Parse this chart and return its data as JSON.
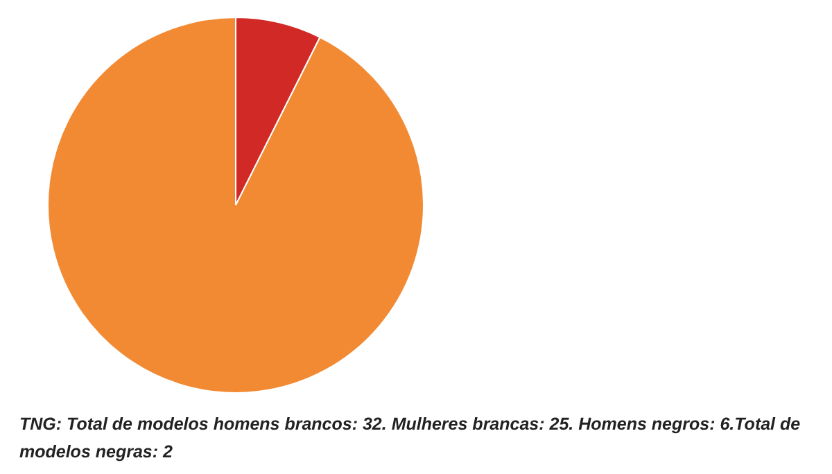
{
  "chart_data": {
    "type": "pie",
    "categories": [
      null,
      null
    ],
    "values": [
      7.4,
      92.6
    ],
    "colors": [
      "#d12a26",
      "#f28a33"
    ],
    "legend": false,
    "annotations": [
      "TNG: Total de modelos homens brancos: 32. Mulheres brancas: 25. Homens negros: 6.Total de modelos negras: 2"
    ]
  }
}
